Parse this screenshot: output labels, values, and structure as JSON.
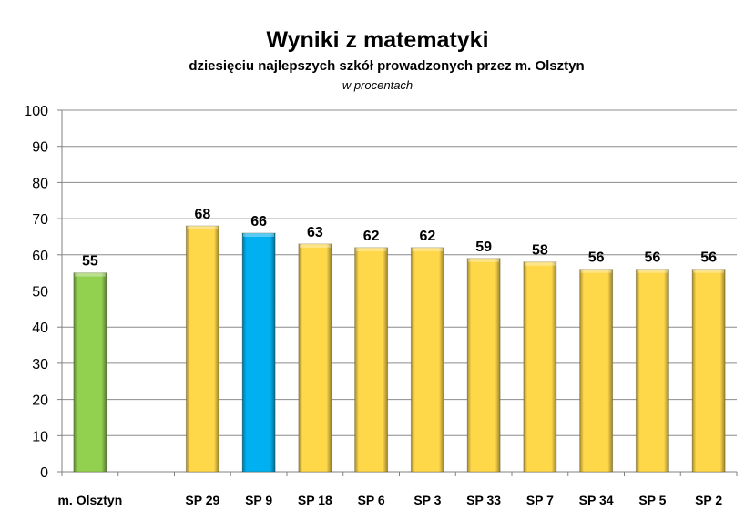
{
  "chart_data": {
    "type": "bar",
    "title": "Wyniki z matematyki",
    "subtitle": "dziesięciu najlepszych szkół  prowadzonych przez m. Olsztyn",
    "unit_note": "w procentach",
    "categories": [
      "m. Olsztyn",
      "",
      "SP 29",
      "SP 9",
      "SP 18",
      "SP 6",
      "SP 3",
      "SP 33",
      "SP 7",
      "SP 34",
      "SP 5",
      "SP 2"
    ],
    "values": [
      55,
      null,
      68,
      66,
      63,
      62,
      62,
      59,
      58,
      56,
      56,
      56
    ],
    "data_labels": [
      "55",
      "",
      "68",
      "66",
      "63",
      "62",
      "62",
      "59",
      "58",
      "56",
      "56",
      "56"
    ],
    "bar_colors": [
      "#92d050",
      null,
      "#ffd84a",
      "#00b0f0",
      "#ffd84a",
      "#ffd84a",
      "#ffd84a",
      "#ffd84a",
      "#ffd84a",
      "#ffd84a",
      "#ffd84a",
      "#ffd84a"
    ],
    "ylim": [
      0,
      100
    ],
    "yticks": [
      0,
      10,
      20,
      30,
      40,
      50,
      60,
      70,
      80,
      90,
      100
    ],
    "grid": true,
    "legend": "none",
    "xlabel": "",
    "ylabel": ""
  }
}
